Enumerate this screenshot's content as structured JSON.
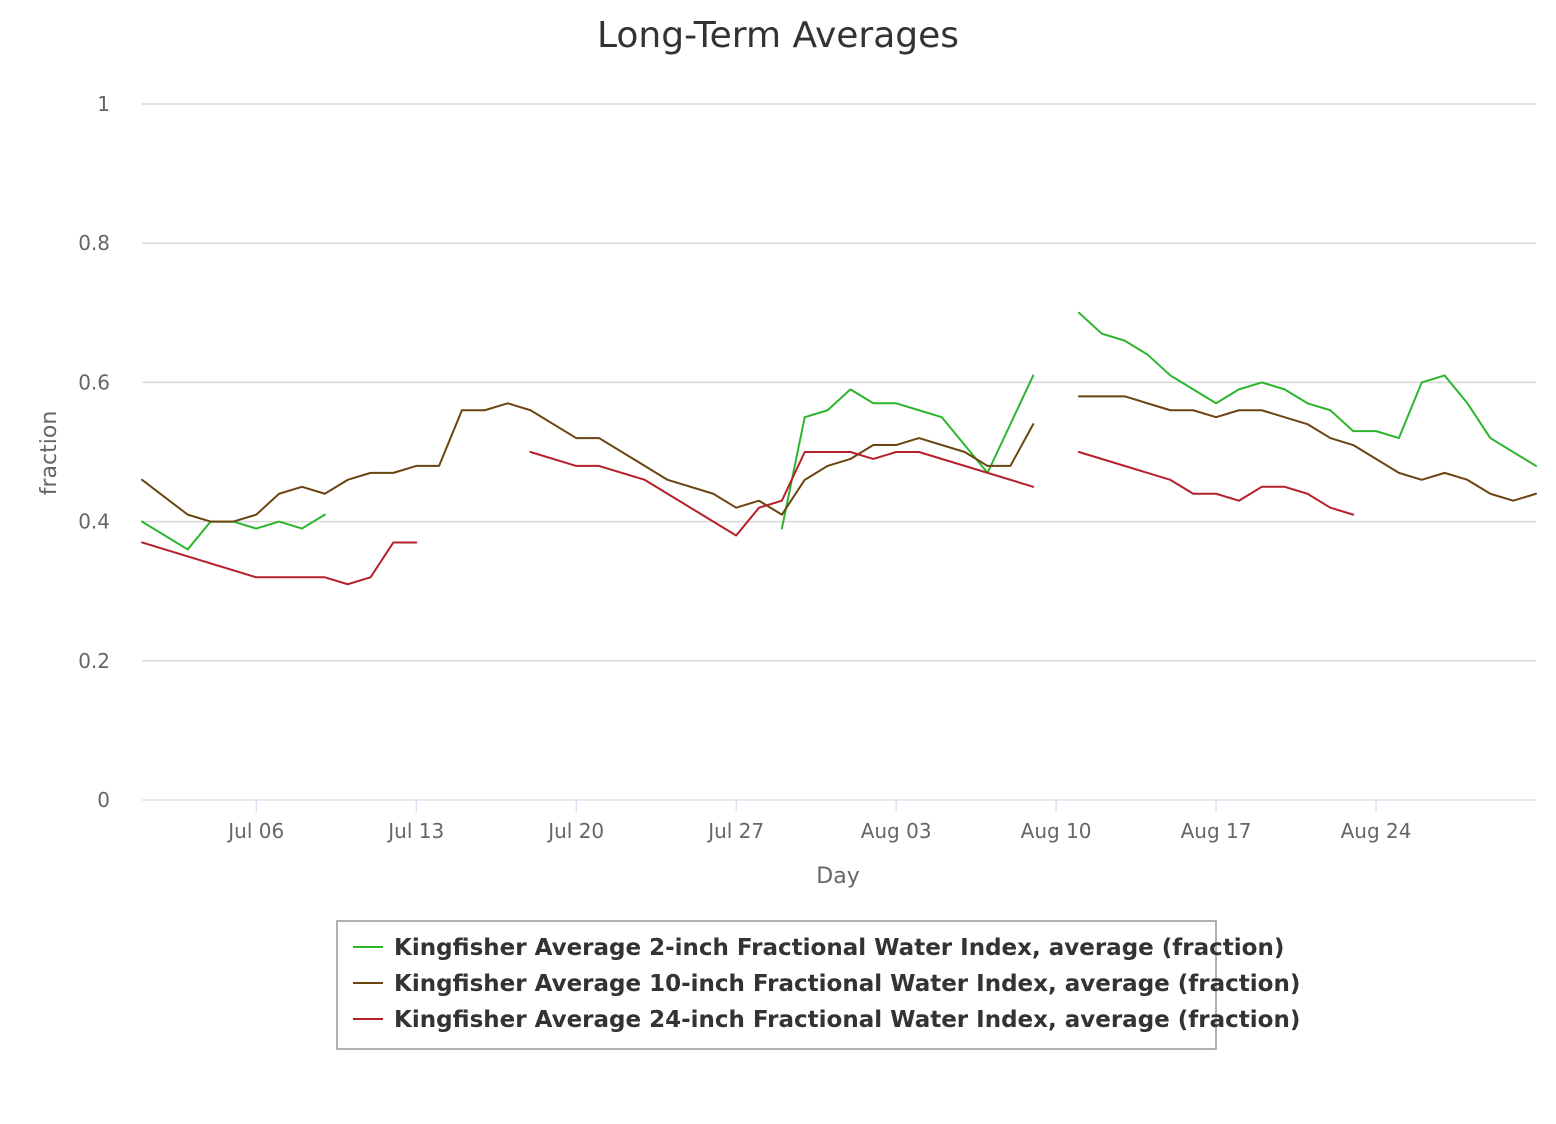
{
  "chart_data": {
    "type": "line",
    "title": "Long-Term Averages",
    "xlabel": "Day",
    "ylabel": "fraction",
    "ylim": [
      0,
      1
    ],
    "yticks": [
      "0",
      "0.2",
      "0.4",
      "0.6",
      "0.8",
      "1"
    ],
    "xlim": [
      "2021-07-01",
      "2021-08-31"
    ],
    "xticks": [
      {
        "label": "Jul 06",
        "date": "2021-07-06"
      },
      {
        "label": "Jul 13",
        "date": "2021-07-13"
      },
      {
        "label": "Jul 20",
        "date": "2021-07-20"
      },
      {
        "label": "Jul 27",
        "date": "2021-07-27"
      },
      {
        "label": "Aug 03",
        "date": "2021-08-03"
      },
      {
        "label": "Aug 10",
        "date": "2021-08-10"
      },
      {
        "label": "Aug 17",
        "date": "2021-08-17"
      },
      {
        "label": "Aug 24",
        "date": "2021-08-24"
      }
    ],
    "grid": true,
    "legend_position": "bottom-center",
    "series": [
      {
        "name": "Kingfisher Average 2-inch Fractional Water Index, average (fraction)",
        "color": "#2db52d",
        "points": [
          [
            "2021-07-01",
            0.4
          ],
          [
            "2021-07-02",
            0.38
          ],
          [
            "2021-07-03",
            0.36
          ],
          [
            "2021-07-04",
            0.4
          ],
          [
            "2021-07-05",
            0.4
          ],
          [
            "2021-07-06",
            0.39
          ],
          [
            "2021-07-07",
            0.4
          ],
          [
            "2021-07-08",
            0.39
          ],
          [
            "2021-07-09",
            0.41
          ],
          null,
          [
            "2021-07-29",
            0.39
          ],
          [
            "2021-07-30",
            0.55
          ],
          [
            "2021-07-31",
            0.56
          ],
          [
            "2021-08-01",
            0.59
          ],
          [
            "2021-08-02",
            0.57
          ],
          [
            "2021-08-03",
            0.57
          ],
          [
            "2021-08-04",
            0.56
          ],
          [
            "2021-08-05",
            0.55
          ],
          [
            "2021-08-07",
            0.47
          ],
          [
            "2021-08-09",
            0.61
          ],
          null,
          [
            "2021-08-11",
            0.7
          ],
          [
            "2021-08-12",
            0.67
          ],
          [
            "2021-08-13",
            0.66
          ],
          [
            "2021-08-14",
            0.64
          ],
          [
            "2021-08-15",
            0.61
          ],
          [
            "2021-08-16",
            0.59
          ],
          [
            "2021-08-17",
            0.57
          ],
          [
            "2021-08-18",
            0.59
          ],
          [
            "2021-08-19",
            0.6
          ],
          [
            "2021-08-20",
            0.59
          ],
          [
            "2021-08-21",
            0.57
          ],
          [
            "2021-08-22",
            0.56
          ],
          [
            "2021-08-23",
            0.53
          ],
          [
            "2021-08-24",
            0.53
          ],
          [
            "2021-08-25",
            0.52
          ],
          [
            "2021-08-26",
            0.6
          ],
          [
            "2021-08-27",
            0.61
          ],
          [
            "2021-08-28",
            0.57
          ],
          [
            "2021-08-29",
            0.52
          ],
          [
            "2021-08-30",
            0.5
          ],
          [
            "2021-08-31",
            0.48
          ]
        ]
      },
      {
        "name": "Kingfisher Average 10-inch Fractional Water Index, average (fraction)",
        "color": "#6b4410",
        "points": [
          [
            "2021-07-01",
            0.46
          ],
          [
            "2021-07-03",
            0.41
          ],
          [
            "2021-07-04",
            0.4
          ],
          [
            "2021-07-05",
            0.4
          ],
          [
            "2021-07-06",
            0.41
          ],
          [
            "2021-07-07",
            0.44
          ],
          [
            "2021-07-08",
            0.45
          ],
          [
            "2021-07-09",
            0.44
          ],
          [
            "2021-07-10",
            0.46
          ],
          [
            "2021-07-11",
            0.47
          ],
          [
            "2021-07-12",
            0.47
          ],
          [
            "2021-07-13",
            0.48
          ],
          [
            "2021-07-14",
            0.48
          ],
          [
            "2021-07-15",
            0.56
          ],
          [
            "2021-07-16",
            0.56
          ],
          [
            "2021-07-17",
            0.57
          ],
          [
            "2021-07-18",
            0.56
          ],
          [
            "2021-07-20",
            0.52
          ],
          [
            "2021-07-21",
            0.52
          ],
          [
            "2021-07-24",
            0.46
          ],
          [
            "2021-07-26",
            0.44
          ],
          [
            "2021-07-27",
            0.42
          ],
          [
            "2021-07-28",
            0.43
          ],
          [
            "2021-07-29",
            0.41
          ],
          [
            "2021-07-30",
            0.46
          ],
          [
            "2021-07-31",
            0.48
          ],
          [
            "2021-08-01",
            0.49
          ],
          [
            "2021-08-02",
            0.51
          ],
          [
            "2021-08-03",
            0.51
          ],
          [
            "2021-08-04",
            0.52
          ],
          [
            "2021-08-06",
            0.5
          ],
          [
            "2021-08-07",
            0.48
          ],
          [
            "2021-08-08",
            0.48
          ],
          [
            "2021-08-09",
            0.54
          ],
          null,
          [
            "2021-08-11",
            0.58
          ],
          [
            "2021-08-13",
            0.58
          ],
          [
            "2021-08-15",
            0.56
          ],
          [
            "2021-08-16",
            0.56
          ],
          [
            "2021-08-17",
            0.55
          ],
          [
            "2021-08-18",
            0.56
          ],
          [
            "2021-08-19",
            0.56
          ],
          [
            "2021-08-21",
            0.54
          ],
          [
            "2021-08-22",
            0.52
          ],
          [
            "2021-08-23",
            0.51
          ],
          [
            "2021-08-25",
            0.47
          ],
          [
            "2021-08-26",
            0.46
          ],
          [
            "2021-08-27",
            0.47
          ],
          [
            "2021-08-28",
            0.46
          ],
          [
            "2021-08-29",
            0.44
          ],
          [
            "2021-08-30",
            0.43
          ],
          [
            "2021-08-31",
            0.44
          ]
        ]
      },
      {
        "name": "Kingfisher Average 24-inch Fractional Water Index, average (fraction)",
        "color": "#b5202a",
        "points": [
          [
            "2021-07-01",
            0.37
          ],
          [
            "2021-07-06",
            0.32
          ],
          [
            "2021-07-09",
            0.32
          ],
          [
            "2021-07-10",
            0.31
          ],
          [
            "2021-07-11",
            0.32
          ],
          [
            "2021-07-12",
            0.37
          ],
          [
            "2021-07-13",
            0.37
          ],
          null,
          [
            "2021-07-18",
            0.5
          ],
          [
            "2021-07-20",
            0.48
          ],
          [
            "2021-07-21",
            0.48
          ],
          [
            "2021-07-23",
            0.46
          ],
          [
            "2021-07-27",
            0.38
          ],
          [
            "2021-07-28",
            0.42
          ],
          [
            "2021-07-29",
            0.43
          ],
          [
            "2021-07-30",
            0.5
          ],
          [
            "2021-08-01",
            0.5
          ],
          [
            "2021-08-02",
            0.49
          ],
          [
            "2021-08-03",
            0.5
          ],
          [
            "2021-08-04",
            0.5
          ],
          [
            "2021-08-09",
            0.45
          ],
          null,
          [
            "2021-08-11",
            0.5
          ],
          [
            "2021-08-15",
            0.46
          ],
          [
            "2021-08-16",
            0.44
          ],
          [
            "2021-08-17",
            0.44
          ],
          [
            "2021-08-18",
            0.43
          ],
          [
            "2021-08-19",
            0.45
          ],
          [
            "2021-08-20",
            0.45
          ],
          [
            "2021-08-21",
            0.44
          ],
          [
            "2021-08-22",
            0.42
          ],
          [
            "2021-08-23",
            0.41
          ]
        ]
      }
    ]
  }
}
